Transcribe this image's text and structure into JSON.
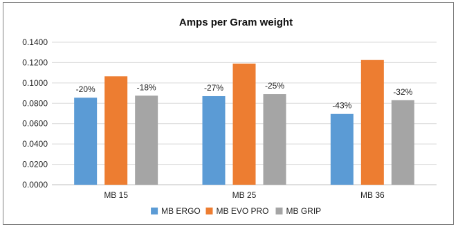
{
  "chart_data": {
    "type": "bar",
    "title": "Amps per Gram weight",
    "categories": [
      "MB 15",
      "MB 25",
      "MB 36"
    ],
    "series": [
      {
        "name": "MB ERGO",
        "color": "#5b9bd5",
        "values": [
          0.0855,
          0.087,
          0.0695
        ],
        "labels": [
          "-20%",
          "-27%",
          "-43%"
        ]
      },
      {
        "name": "MB EVO PRO",
        "color": "#ed7d31",
        "values": [
          0.1065,
          0.119,
          0.1225
        ],
        "labels": [
          "",
          "",
          ""
        ]
      },
      {
        "name": "MB GRIP",
        "color": "#a5a5a5",
        "values": [
          0.0875,
          0.089,
          0.083
        ],
        "labels": [
          "-18%",
          "-25%",
          "-32%"
        ]
      }
    ],
    "yticks": [
      "0.0000",
      "0.0200",
      "0.0400",
      "0.0600",
      "0.0800",
      "0.1000",
      "0.1200",
      "0.1400"
    ],
    "ylim": [
      0,
      0.14
    ],
    "xlabel": "",
    "ylabel": "",
    "grid": true,
    "legend_position": "bottom"
  }
}
